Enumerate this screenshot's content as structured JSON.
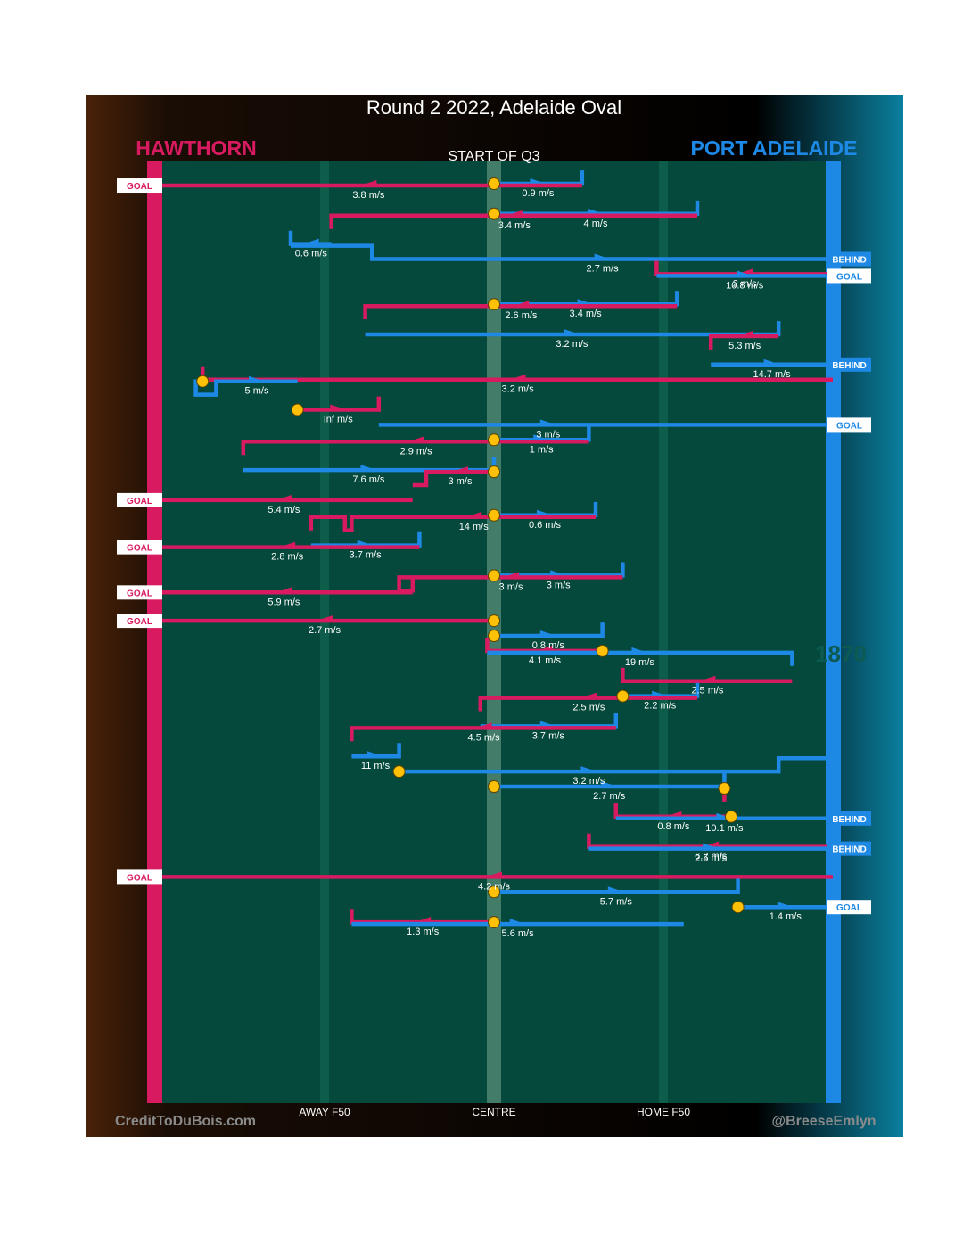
{
  "title": "Round 2 2022, Adelaide Oval",
  "subtitle": "START OF Q3",
  "teams": {
    "home": {
      "name": "HAWTHORN",
      "color": "#d81b60"
    },
    "away": {
      "name": "PORT ADELAIDE",
      "color": "#1e88e5"
    }
  },
  "footer": {
    "left": "CreditToDuBois.com",
    "right": "@BreeseEmlyn"
  },
  "badge_watermark": "1870",
  "colors": {
    "field": "#04493b",
    "lane": "#0d5b49",
    "centre": "#4f8572",
    "marker": "#ffc107"
  },
  "chart_data": {
    "type": "line",
    "x_axis": {
      "ticks": [
        {
          "label": "AWAY F50",
          "x": 0.25
        },
        {
          "label": "CENTRE",
          "x": 0.5
        },
        {
          "label": "HOME F50",
          "x": 0.75
        }
      ],
      "range": [
        0,
        1
      ]
    },
    "series": [
      {
        "team": "Port Adelaide",
        "path": [
          [
            0.5,
            0.5
          ],
          [
            0.63,
            0.5
          ],
          [
            0.63,
            0.06
          ]
        ],
        "speed": "0.9 m/s",
        "stop": "centre"
      },
      {
        "team": "Hawthorn",
        "path": [
          [
            0.63,
            0.06
          ],
          [
            0,
            0.06
          ]
        ],
        "speed": "3.8 m/s",
        "result": "GOAL"
      },
      {
        "team": "Port Adelaide",
        "path": [
          [
            0.5,
            0.5
          ],
          [
            0.8,
            0.5
          ],
          [
            0.8,
            0.06
          ]
        ],
        "speed": "4 m/s",
        "stop": "centre"
      },
      {
        "team": "Hawthorn",
        "path": [
          [
            0.8,
            0.06
          ],
          [
            0.26,
            0.06
          ],
          [
            0.26,
            0.5
          ]
        ],
        "speed": "3.4 m/s"
      },
      {
        "team": "Port Adelaide",
        "path": [
          [
            0.26,
            0.5
          ],
          [
            0.2,
            0.5
          ],
          [
            0.2,
            0.06
          ]
        ],
        "speed": "0.6 m/s"
      },
      {
        "team": "Port Adelaide",
        "path": [
          [
            0.2,
            0.06
          ],
          [
            0.32,
            0.06
          ],
          [
            0.32,
            0.5
          ],
          [
            1,
            0.5
          ]
        ],
        "speed": "2.7 m/s",
        "result": "BEHIND"
      },
      {
        "team": "Hawthorn",
        "path": [
          [
            1,
            0.5
          ],
          [
            0.74,
            0.5
          ],
          [
            0.74,
            0.06
          ]
        ],
        "speed": "2 m/s"
      },
      {
        "team": "Port Adelaide",
        "path": [
          [
            0.74,
            0.06
          ],
          [
            1,
            0.06
          ]
        ],
        "speed": "10.8 m/s",
        "result": "GOAL"
      },
      {
        "team": "Port Adelaide",
        "path": [
          [
            0.5,
            0.5
          ],
          [
            0.77,
            0.5
          ],
          [
            0.77,
            0.06
          ]
        ],
        "speed": "3.4 m/s",
        "stop": "centre"
      },
      {
        "team": "Hawthorn",
        "path": [
          [
            0.77,
            0.06
          ],
          [
            0.31,
            0.06
          ],
          [
            0.31,
            0.5
          ]
        ],
        "speed": "2.6 m/s"
      },
      {
        "team": "Port Adelaide",
        "path": [
          [
            0.31,
            0.5
          ],
          [
            0.92,
            0.5
          ],
          [
            0.92,
            0.06
          ]
        ],
        "speed": "3.2 m/s"
      },
      {
        "team": "Hawthorn",
        "path": [
          [
            0.92,
            0.06
          ],
          [
            0.82,
            0.06
          ],
          [
            0.82,
            0.5
          ]
        ],
        "speed": "5.3 m/s"
      },
      {
        "team": "Port Adelaide",
        "path": [
          [
            0.82,
            0.5
          ],
          [
            1,
            0.5
          ]
        ],
        "speed": "14.7 m/s",
        "result": "BEHIND"
      },
      {
        "team": "Hawthorn",
        "path": [
          [
            1,
            0.5
          ],
          [
            0.07,
            0.5
          ],
          [
            0.07,
            0.06
          ]
        ],
        "speed": "3.2 m/s"
      },
      {
        "team": "Port Adelaide",
        "path": [
          [
            0.07,
            0.06
          ],
          [
            0.06,
            0.06
          ],
          [
            0.06,
            0.5
          ],
          [
            0.09,
            0.5
          ],
          [
            0.09,
            0.06
          ],
          [
            0.21,
            0.06
          ]
        ],
        "speed": "5 m/s",
        "stop": "ball-up"
      },
      {
        "team": "Hawthorn",
        "path": [
          [
            0.21,
            0.5
          ],
          [
            0.33,
            0.5
          ],
          [
            0.33,
            0.06
          ]
        ],
        "speed": "Inf m/s",
        "stop": "ball-up"
      },
      {
        "team": "Port Adelaide",
        "path": [
          [
            0.33,
            0.5
          ],
          [
            0.83,
            0.5
          ],
          [
            0.83,
            0.5
          ],
          [
            0.86,
            0.5
          ],
          [
            0.86,
            0.5
          ],
          [
            1,
            0.5
          ]
        ],
        "speed": "3 m/s",
        "result": "GOAL"
      },
      {
        "team": "Port Adelaide",
        "path": [
          [
            0.5,
            0.5
          ],
          [
            0.64,
            0.5
          ],
          [
            0.64,
            0.06
          ]
        ],
        "speed": "1 m/s",
        "stop": "centre"
      },
      {
        "team": "Hawthorn",
        "path": [
          [
            0.64,
            0.06
          ],
          [
            0.13,
            0.06
          ],
          [
            0.13,
            0.5
          ]
        ],
        "speed": "2.9 m/s"
      },
      {
        "team": "Port Adelaide",
        "path": [
          [
            0.13,
            0.5
          ],
          [
            0.5,
            0.5
          ],
          [
            0.5,
            0.06
          ]
        ],
        "speed": "7.6 m/s"
      },
      {
        "team": "Hawthorn",
        "path": [
          [
            0.5,
            0.06
          ],
          [
            0.4,
            0.06
          ],
          [
            0.4,
            0.5
          ],
          [
            0.38,
            0.5
          ]
        ],
        "speed": "3 m/s",
        "stop": "ball-up"
      },
      {
        "team": "Hawthorn",
        "path": [
          [
            0.38,
            0.5
          ],
          [
            0,
            0.5
          ]
        ],
        "speed": "5.4 m/s",
        "result": "GOAL"
      },
      {
        "team": "Port Adelaide",
        "path": [
          [
            0.5,
            0.5
          ],
          [
            0.65,
            0.5
          ],
          [
            0.65,
            0.06
          ]
        ],
        "speed": "0.6 m/s",
        "stop": "centre"
      },
      {
        "team": "Hawthorn",
        "path": [
          [
            0.65,
            0.06
          ],
          [
            0.29,
            0.06
          ],
          [
            0.29,
            0.5
          ],
          [
            0.28,
            0.5
          ],
          [
            0.28,
            0.06
          ],
          [
            0.23,
            0.06
          ],
          [
            0.23,
            0.5
          ]
        ],
        "speed": "14 m/s"
      },
      {
        "team": "Port Adelaide",
        "path": [
          [
            0.23,
            0.5
          ],
          [
            0.39,
            0.5
          ],
          [
            0.39,
            0.06
          ]
        ],
        "speed": "3.7 m/s"
      },
      {
        "team": "Hawthorn",
        "path": [
          [
            0.39,
            0.06
          ],
          [
            0,
            0.06
          ]
        ],
        "speed": "2.8 m/s",
        "result": "GOAL"
      },
      {
        "team": "Port Adelaide",
        "path": [
          [
            0.5,
            0.5
          ],
          [
            0.69,
            0.5
          ],
          [
            0.69,
            0.06
          ]
        ],
        "speed": "3 m/s",
        "stop": "centre"
      },
      {
        "team": "Hawthorn",
        "path": [
          [
            0.69,
            0.06
          ],
          [
            0.36,
            0.06
          ],
          [
            0.36,
            0.5
          ],
          [
            0.38,
            0.5
          ],
          [
            0.38,
            0.06
          ]
        ],
        "speed": "3 m/s"
      },
      {
        "team": "Hawthorn",
        "path": [
          [
            0.38,
            0.06
          ],
          [
            0,
            0.06
          ]
        ],
        "speed": "5.9 m/s",
        "result": "GOAL"
      },
      {
        "team": "Hawthorn",
        "path": [
          [
            0.5,
            0.5
          ],
          [
            0,
            0.5
          ]
        ],
        "speed": "2.7 m/s",
        "result": "GOAL",
        "stop": "centre"
      },
      {
        "team": "Port Adelaide",
        "path": [
          [
            0.5,
            0.5
          ],
          [
            0.66,
            0.5
          ],
          [
            0.66,
            0.06
          ]
        ],
        "speed": "0.8 m/s",
        "stop": "centre"
      },
      {
        "team": "Hawthorn",
        "path": [
          [
            0.66,
            0.5
          ],
          [
            0.49,
            0.5
          ],
          [
            0.49,
            0.06
          ]
        ],
        "speed": "4.1 m/s",
        "stop": "ball-up"
      },
      {
        "team": "Port Adelaide",
        "path": [
          [
            0.49,
            0.06
          ],
          [
            0.94,
            0.06
          ],
          [
            0.94,
            0.5
          ]
        ],
        "speed": "19 m/s"
      },
      {
        "team": "Hawthorn",
        "path": [
          [
            0.94,
            0.5
          ],
          [
            0.69,
            0.5
          ],
          [
            0.69,
            0.06
          ]
        ],
        "speed": "2.5 m/s"
      },
      {
        "team": "Port Adelaide",
        "path": [
          [
            0.69,
            0.5
          ],
          [
            0.8,
            0.5
          ],
          [
            0.8,
            0.06
          ]
        ],
        "speed": "2.2 m/s",
        "stop": "ball-up"
      },
      {
        "team": "Hawthorn",
        "path": [
          [
            0.8,
            0.06
          ],
          [
            0.48,
            0.06
          ],
          [
            0.48,
            0.5
          ]
        ],
        "speed": "2.5 m/s"
      },
      {
        "team": "Port Adelaide",
        "path": [
          [
            0.48,
            0.5
          ],
          [
            0.68,
            0.5
          ],
          [
            0.68,
            0.06
          ]
        ],
        "speed": "3.7 m/s"
      },
      {
        "team": "Hawthorn",
        "path": [
          [
            0.68,
            0.06
          ],
          [
            0.29,
            0.06
          ],
          [
            0.29,
            0.5
          ]
        ],
        "speed": "4.5 m/s"
      },
      {
        "team": "Port Adelaide",
        "path": [
          [
            0.29,
            0.5
          ],
          [
            0.36,
            0.5
          ],
          [
            0.36,
            0.06
          ]
        ],
        "speed": "11 m/s"
      },
      {
        "team": "Port Adelaide",
        "path": [
          [
            0.36,
            0.5
          ],
          [
            0.92,
            0.5
          ],
          [
            0.92,
            0.06
          ],
          [
            1,
            0.06
          ]
        ],
        "speed": "3.2 m/s",
        "stop": "ball-up"
      },
      {
        "team": "Port Adelaide",
        "path": [
          [
            0.5,
            0.5
          ],
          [
            0.84,
            0.5
          ],
          [
            0.84,
            0.06
          ]
        ],
        "speed": "2.7 m/s",
        "stop": "centre"
      },
      {
        "team": "Hawthorn",
        "path": [
          [
            0.84,
            0.06
          ],
          [
            0.84,
            0.5
          ]
        ],
        "speed": "",
        "stop": "ball-up"
      },
      {
        "team": "Hawthorn",
        "path": [
          [
            0.85,
            0.5
          ],
          [
            0.68,
            0.5
          ],
          [
            0.68,
            0.06
          ]
        ],
        "speed": "0.8 m/s",
        "stop": "ball-up"
      },
      {
        "team": "Port Adelaide",
        "path": [
          [
            0.68,
            0.06
          ],
          [
            1,
            0.06
          ]
        ],
        "speed": "10.1 m/s",
        "result": "BEHIND"
      },
      {
        "team": "Hawthorn",
        "path": [
          [
            1,
            0.5
          ],
          [
            0.64,
            0.5
          ],
          [
            0.64,
            0.06
          ]
        ],
        "speed": "6.2 m/s"
      },
      {
        "team": "Port Adelaide",
        "path": [
          [
            0.64,
            0.06
          ],
          [
            1,
            0.06
          ]
        ],
        "speed": "2.5 m/s",
        "result": "BEHIND"
      },
      {
        "team": "Hawthorn",
        "path": [
          [
            1,
            0.5
          ],
          [
            0,
            0.5
          ]
        ],
        "speed": "4.2 m/s",
        "result": "GOAL"
      },
      {
        "team": "Port Adelaide",
        "path": [
          [
            0.5,
            0.5
          ],
          [
            0.86,
            0.5
          ],
          [
            0.86,
            0.06
          ]
        ],
        "speed": "5.7 m/s",
        "stop": "centre"
      },
      {
        "team": "Port Adelaide",
        "path": [
          [
            0.86,
            0.5
          ],
          [
            1,
            0.5
          ]
        ],
        "speed": "1.4 m/s",
        "result": "GOAL",
        "stop": "ball-up"
      },
      {
        "team": "Hawthorn",
        "path": [
          [
            0.5,
            0.5
          ],
          [
            0.29,
            0.5
          ],
          [
            0.29,
            0.06
          ]
        ],
        "speed": "1.3 m/s",
        "stop": "centre"
      },
      {
        "team": "Port Adelaide",
        "path": [
          [
            0.29,
            0.06
          ],
          [
            0.78,
            0.06
          ]
        ],
        "speed": "5.6 m/s"
      }
    ]
  }
}
